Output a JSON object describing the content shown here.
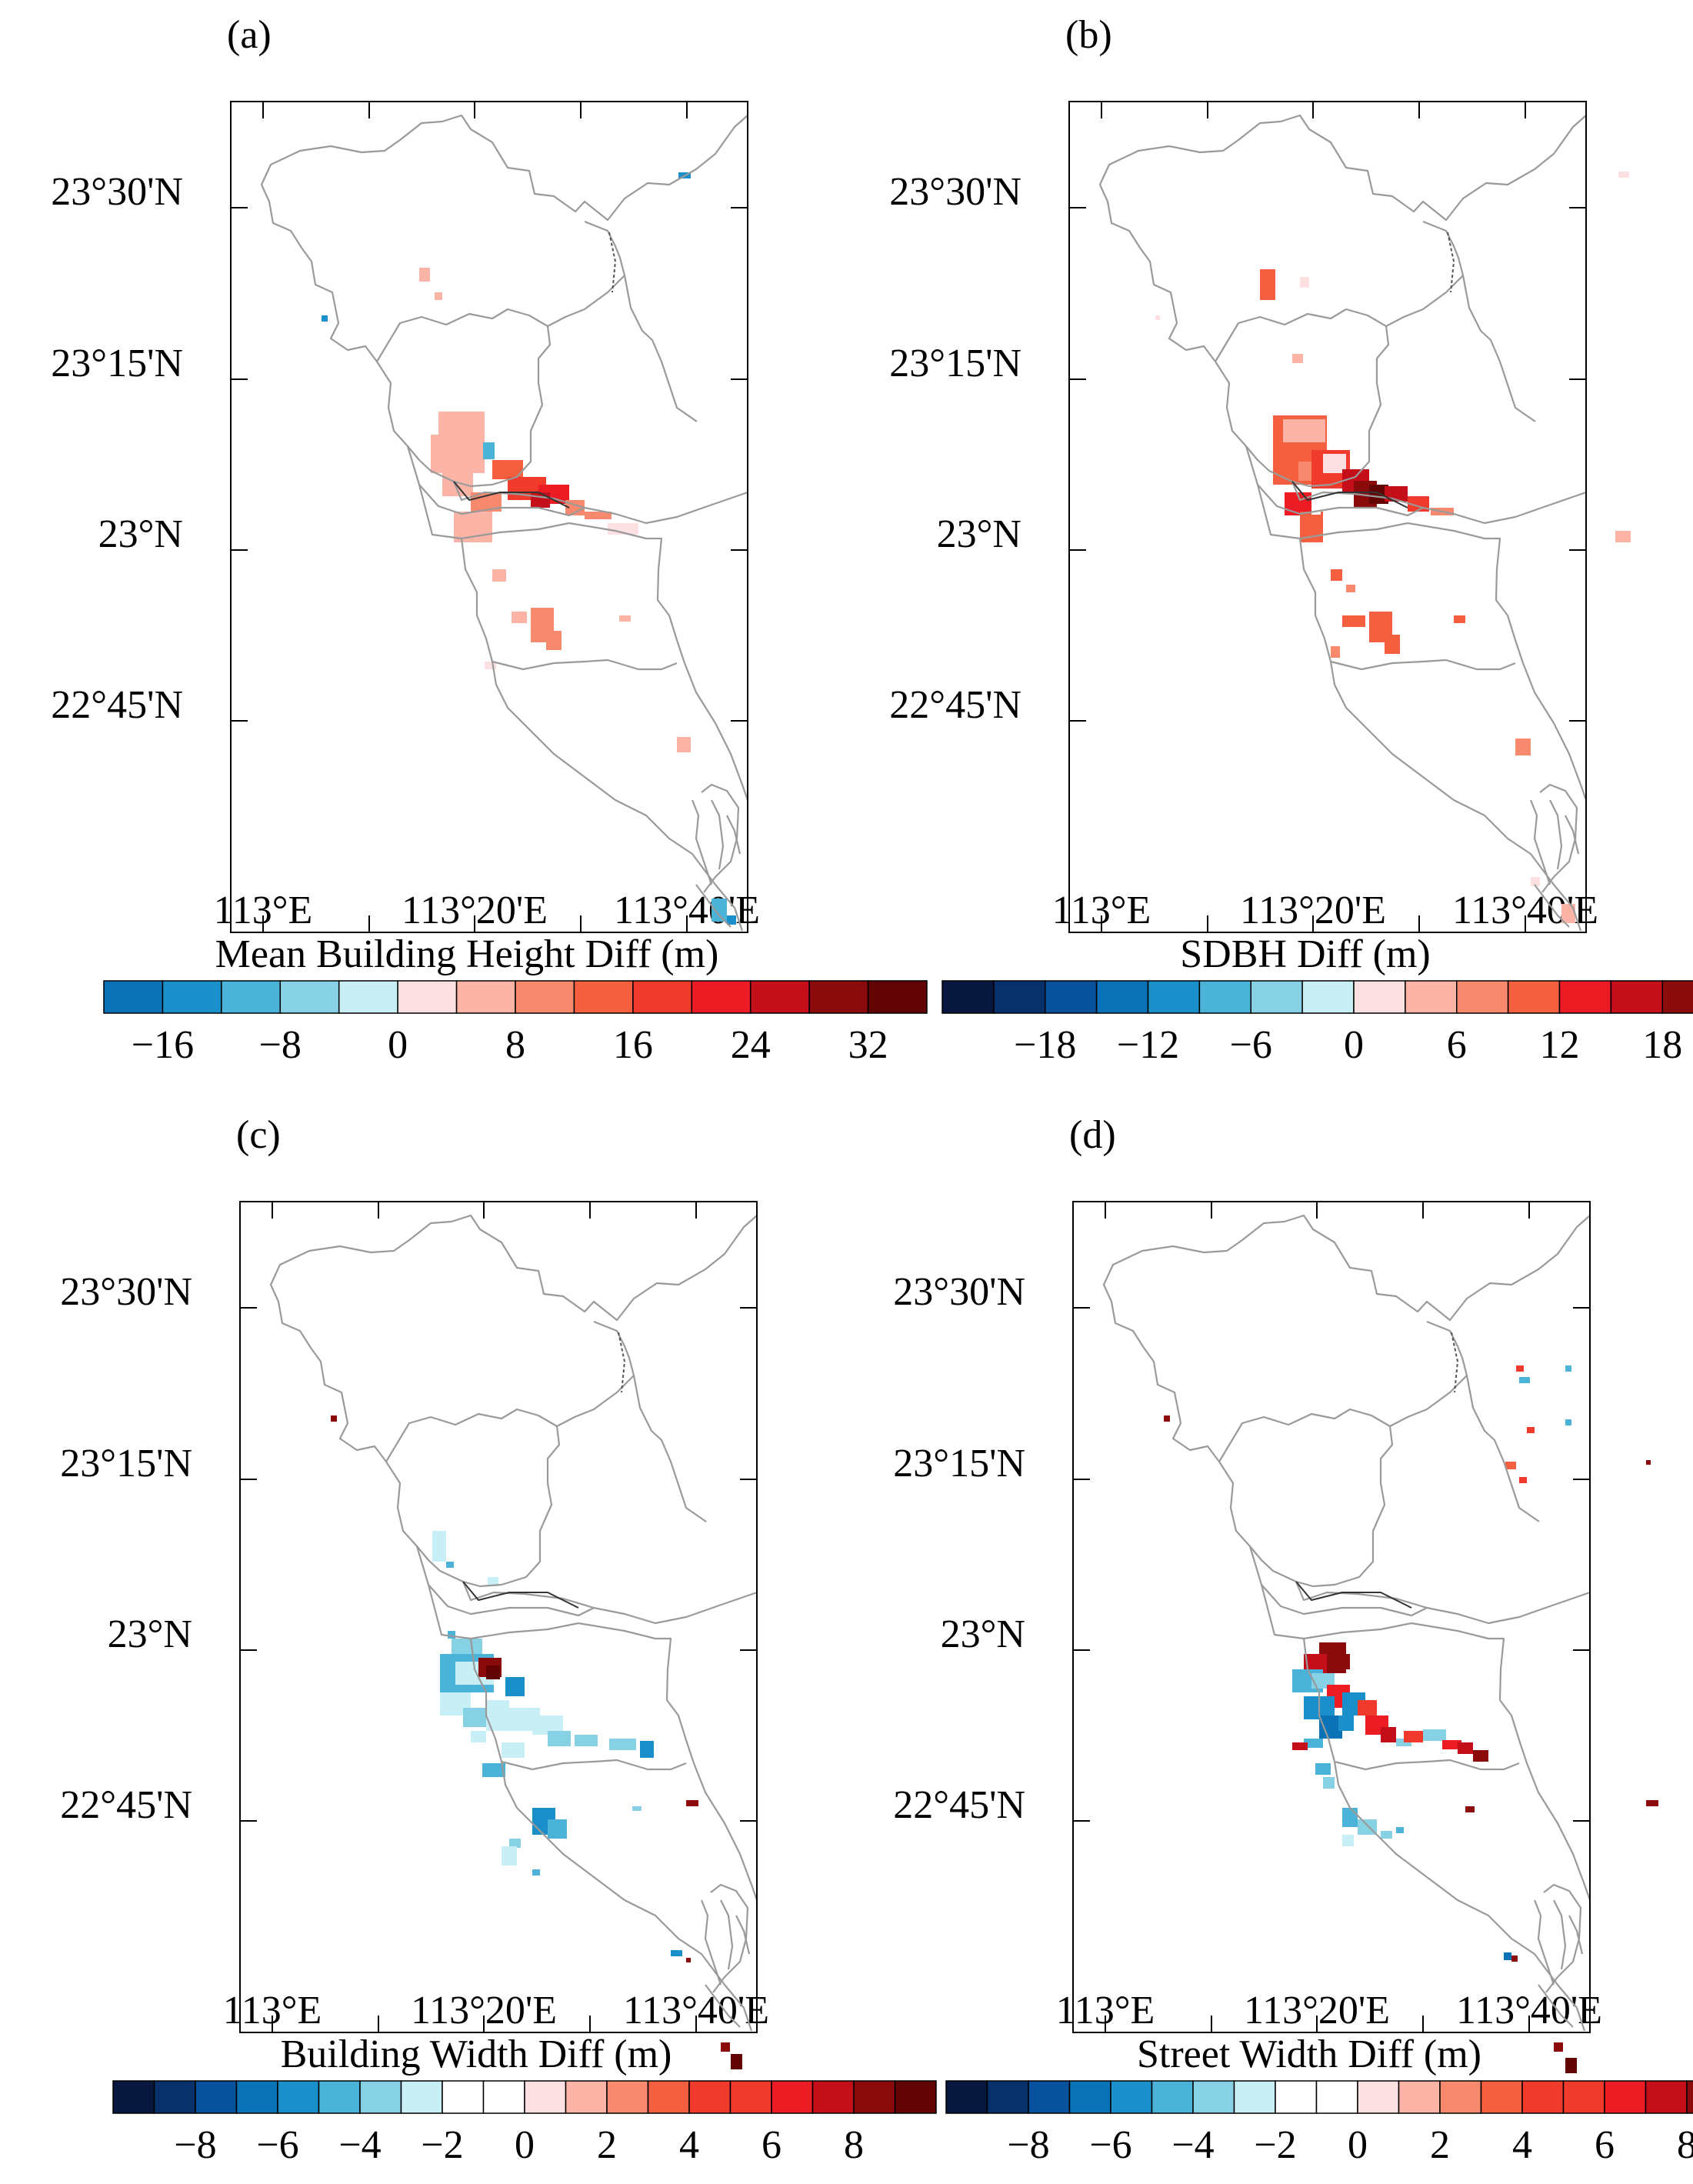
{
  "palette": {
    "blues": [
      "#08173d",
      "#08306b",
      "#08519c",
      "#0a73b8",
      "#1a8fc9",
      "#4bb3d8",
      "#86d1e4",
      "#c8eef6"
    ],
    "whites": [
      "#ffffff"
    ],
    "reds": [
      "#fde0e2",
      "#fbb4a6",
      "#f78a6e",
      "#f4603f",
      "#ef3a2c",
      "#ec1c24",
      "#c40f1a",
      "#8b0a0c",
      "#620404"
    ]
  },
  "panels": [
    {
      "label": "(a)",
      "lat_ticks": [
        "23°30'N",
        "23°15'N",
        "23°N",
        "22°45'N"
      ],
      "lon_ticks": [
        "113°E",
        "113°20'E",
        "113°40'E"
      ],
      "colorbar": {
        "title": "Mean Building Height Diff (m)",
        "ticks": [
          "−16",
          "−8",
          "0",
          "8",
          "16",
          "24",
          "32"
        ],
        "n_blue": 5,
        "n_white": 0,
        "n_red": 9,
        "range": [
          -20,
          36
        ]
      }
    },
    {
      "label": "(b)",
      "lat_ticks": [
        "23°30'N",
        "23°15'N",
        "23°N",
        "22°45'N"
      ],
      "lon_ticks": [
        "113°E",
        "113°20'E",
        "113°40'E"
      ],
      "colorbar": {
        "title": "SDBH Diff (m)",
        "ticks": [
          "−18",
          "−12",
          "−6",
          "0",
          "6",
          "12",
          "18"
        ],
        "n_blue": 8,
        "n_white": 0,
        "n_red": 8,
        "range": [
          -24,
          24
        ]
      }
    },
    {
      "label": "(c)",
      "lat_ticks": [
        "23°30'N",
        "23°15'N",
        "23°N",
        "22°45'N"
      ],
      "lon_ticks": [
        "113°E",
        "113°20'E",
        "113°40'E"
      ],
      "colorbar": {
        "title": "Building Width Diff (m)",
        "ticks": [
          "−8",
          "−6",
          "−4",
          "−2",
          "0",
          "2",
          "4",
          "6",
          "8"
        ],
        "n_blue": 8,
        "n_white": 2,
        "n_red": 10,
        "range": [
          -10,
          10
        ]
      }
    },
    {
      "label": "(d)",
      "lat_ticks": [
        "23°30'N",
        "23°15'N",
        "23°N",
        "22°45'N"
      ],
      "lon_ticks": [
        "113°E",
        "113°20'E",
        "113°40'E"
      ],
      "colorbar": {
        "title": "Street Width Diff (m)",
        "ticks": [
          "−8",
          "−6",
          "−4",
          "−2",
          "0",
          "2",
          "4",
          "6",
          "8"
        ],
        "n_blue": 8,
        "n_white": 2,
        "n_red": 10,
        "range": [
          -10,
          10
        ]
      }
    }
  ]
}
